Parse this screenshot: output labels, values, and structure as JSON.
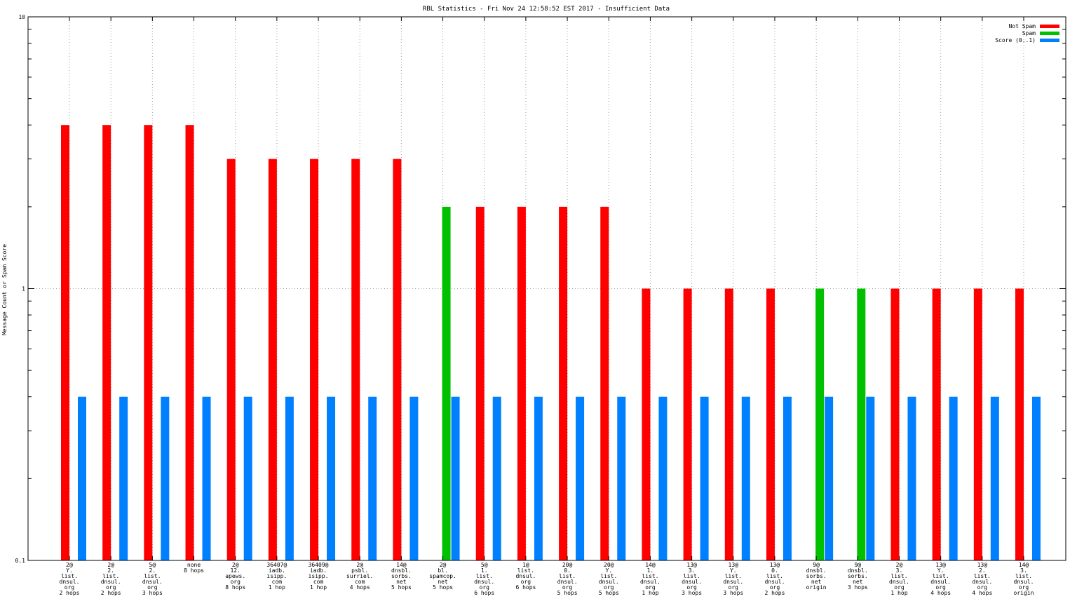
{
  "chart_data": {
    "type": "bar",
    "title": "RBL Statistics - Fri Nov 24 12:58:52 EST 2017 - Insufficient Data",
    "ylabel": "Message Count or Spam Score",
    "xlabel": "",
    "yscale": "log",
    "ylim": [
      0.1,
      10
    ],
    "yticks": [
      "10",
      "1",
      "0.1"
    ],
    "grid": true,
    "legend_position": "top-right",
    "legend": [
      {
        "name": "Not Spam",
        "color": "#ff0000"
      },
      {
        "name": "Spam",
        "color": "#00c000"
      },
      {
        "name": "Score (0..1)",
        "color": "#0080ff"
      }
    ],
    "categories": [
      [
        "2@",
        "Y.",
        "list.",
        "dnsul.",
        "org",
        "2 hops"
      ],
      [
        "2@",
        "2.",
        "list.",
        "dnsul.",
        "org",
        "2 hops"
      ],
      [
        "5@",
        "2.",
        "list.",
        "dnsul.",
        "org",
        "3 hops"
      ],
      [
        "none",
        "8 hops"
      ],
      [
        "2@",
        "12.",
        "apews.",
        "org",
        "8 hops"
      ],
      [
        "36407@",
        "iadb.",
        "isipp.",
        "com",
        "1 hop"
      ],
      [
        "36409@",
        "iadb.",
        "isipp.",
        "com",
        "1 hop"
      ],
      [
        "2@",
        "psbl.",
        "surriel.",
        "com",
        "4 hops"
      ],
      [
        "14@",
        "dnsbl.",
        "sorbs.",
        "net",
        "5 hops"
      ],
      [
        "2@",
        "bl.",
        "spamcop.",
        "net",
        "5 hops"
      ],
      [
        "5@",
        "1.",
        "list.",
        "dnsul.",
        "org",
        "6 hops"
      ],
      [
        "1@",
        "list.",
        "dnsul.",
        "org",
        "6 hops"
      ],
      [
        "20@",
        "0.",
        "list.",
        "dnsul.",
        "org",
        "5 hops"
      ],
      [
        "20@",
        "Y.",
        "list.",
        "dnsul.",
        "org",
        "5 hops"
      ],
      [
        "14@",
        "1.",
        "list.",
        "dnsul.",
        "org",
        "1 hop"
      ],
      [
        "13@",
        "3.",
        "list.",
        "dnsul.",
        "org",
        "3 hops"
      ],
      [
        "13@",
        "Y.",
        "list.",
        "dnsul.",
        "org",
        "3 hops"
      ],
      [
        "13@",
        "0.",
        "list.",
        "dnsul.",
        "org",
        "2 hops"
      ],
      [
        "9@",
        "dnsbl.",
        "sorbs.",
        "net",
        "origin"
      ],
      [
        "9@",
        "dnsbl.",
        "sorbs.",
        "net",
        "3 hops"
      ],
      [
        "2@",
        "3.",
        "list.",
        "dnsul.",
        "org",
        "1 hop"
      ],
      [
        "13@",
        "Y.",
        "list.",
        "dnsul.",
        "org",
        "4 hops"
      ],
      [
        "13@",
        "2.",
        "list.",
        "dnsul.",
        "org",
        "4 hops"
      ],
      [
        "14@",
        "3.",
        "list.",
        "dnsul.",
        "org",
        "origin"
      ]
    ],
    "series": [
      {
        "name": "Not Spam",
        "color": "#ff0000",
        "values": [
          4,
          4,
          4,
          4,
          3,
          3,
          3,
          3,
          3,
          0,
          2,
          2,
          2,
          2,
          1,
          1,
          1,
          1,
          0,
          0,
          1,
          1,
          1,
          1
        ]
      },
      {
        "name": "Spam",
        "color": "#00c000",
        "values": [
          0,
          0,
          0,
          0,
          0,
          0,
          0,
          0,
          0,
          2,
          0,
          0,
          0,
          0,
          0,
          0,
          0,
          0,
          1,
          1,
          0,
          0,
          0,
          0
        ]
      },
      {
        "name": "Score (0..1)",
        "color": "#0080ff",
        "values": [
          0.4,
          0.4,
          0.4,
          0.4,
          0.4,
          0.4,
          0.4,
          0.4,
          0.4,
          0.4,
          0.4,
          0.4,
          0.4,
          0.4,
          0.4,
          0.4,
          0.4,
          0.4,
          0.4,
          0.4,
          0.4,
          0.4,
          0.4,
          0.4
        ]
      }
    ]
  }
}
